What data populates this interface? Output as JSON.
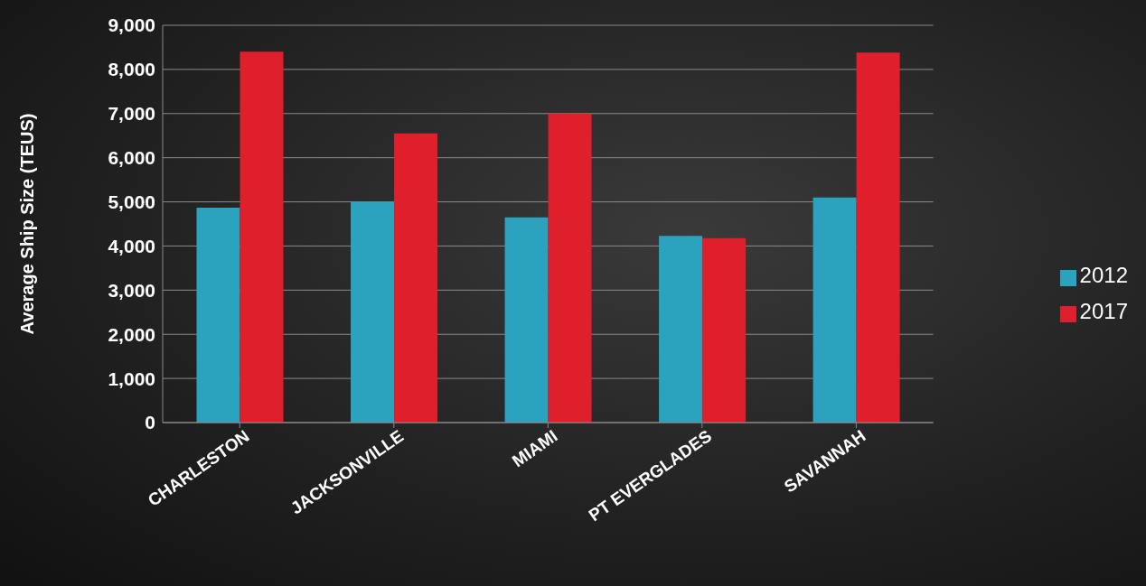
{
  "chart_data": {
    "type": "bar",
    "y_label": "Average Ship Size (TEUS)",
    "categories": [
      "CHARLESTON",
      "JACKSONVILLE",
      "MIAMI",
      "PT EVERGLADES",
      "SAVANNAH"
    ],
    "series": [
      {
        "name": "2012",
        "color": "#2ba3bf",
        "values": [
          4870,
          5000,
          4650,
          4230,
          5100
        ]
      },
      {
        "name": "2017",
        "color": "#df1f2b",
        "values": [
          8400,
          6550,
          7000,
          4180,
          8380
        ]
      }
    ],
    "ylim": [
      0,
      9000
    ],
    "yticks": [
      0,
      {
        "value": 1000,
        "label": "1,000"
      },
      {
        "value": 2000,
        "label": "2,000"
      },
      {
        "value": 3000,
        "label": "3,000"
      },
      {
        "value": 4000,
        "label": "4,000"
      },
      {
        "value": 5000,
        "label": "5,000"
      },
      {
        "value": 6000,
        "label": "6,000"
      },
      {
        "value": 7000,
        "label": "7,000"
      },
      {
        "value": 8000,
        "label": "8,000"
      },
      {
        "value": 9000,
        "label": "9,000"
      }
    ],
    "grid": true,
    "legend": "right"
  }
}
